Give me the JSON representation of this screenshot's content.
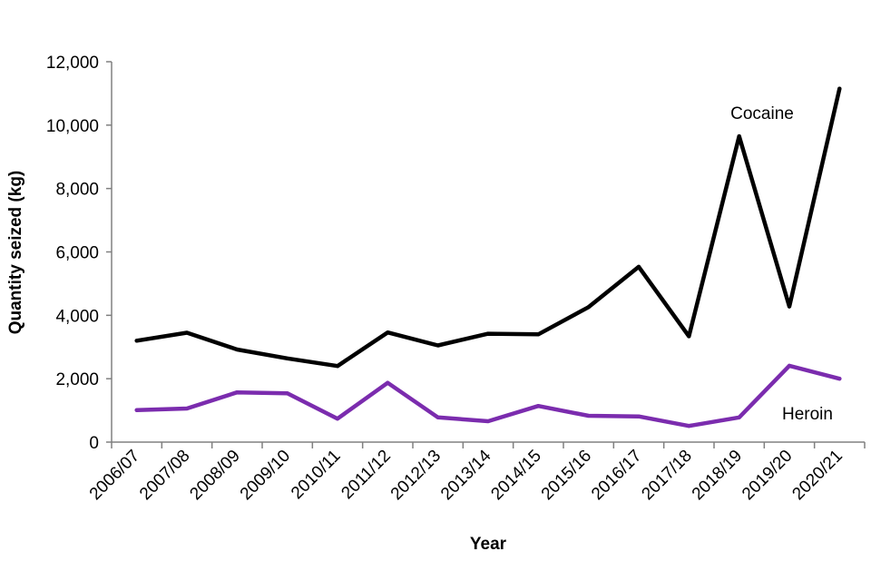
{
  "chart_data": {
    "type": "line",
    "title": "",
    "xlabel": "Year",
    "ylabel": "Quantity seized (kg)",
    "ylim": [
      0,
      12000
    ],
    "yticks": [
      0,
      2000,
      4000,
      6000,
      8000,
      10000,
      12000
    ],
    "ytick_labels": [
      "0",
      "2,000",
      "4,000",
      "6,000",
      "8,000",
      "10,000",
      "12,000"
    ],
    "grid": false,
    "categories": [
      "2006/07",
      "2007/08",
      "2008/09",
      "2009/10",
      "2010/11",
      "2011/12",
      "2012/13",
      "2013/14",
      "2014/15",
      "2015/16",
      "2016/17",
      "2017/18",
      "2018/19",
      "2019/20",
      "2020/21"
    ],
    "series": [
      {
        "name": "Cocaine",
        "color": "#000000",
        "values": [
          3200,
          3450,
          2920,
          2640,
          2400,
          3460,
          3050,
          3420,
          3400,
          4260,
          5530,
          3340,
          9650,
          4280,
          11150
        ]
      },
      {
        "name": "Heroin",
        "color": "#7B2CAE",
        "values": [
          1010,
          1060,
          1570,
          1540,
          740,
          1870,
          780,
          660,
          1140,
          830,
          810,
          510,
          780,
          2410,
          2000
        ]
      }
    ]
  }
}
